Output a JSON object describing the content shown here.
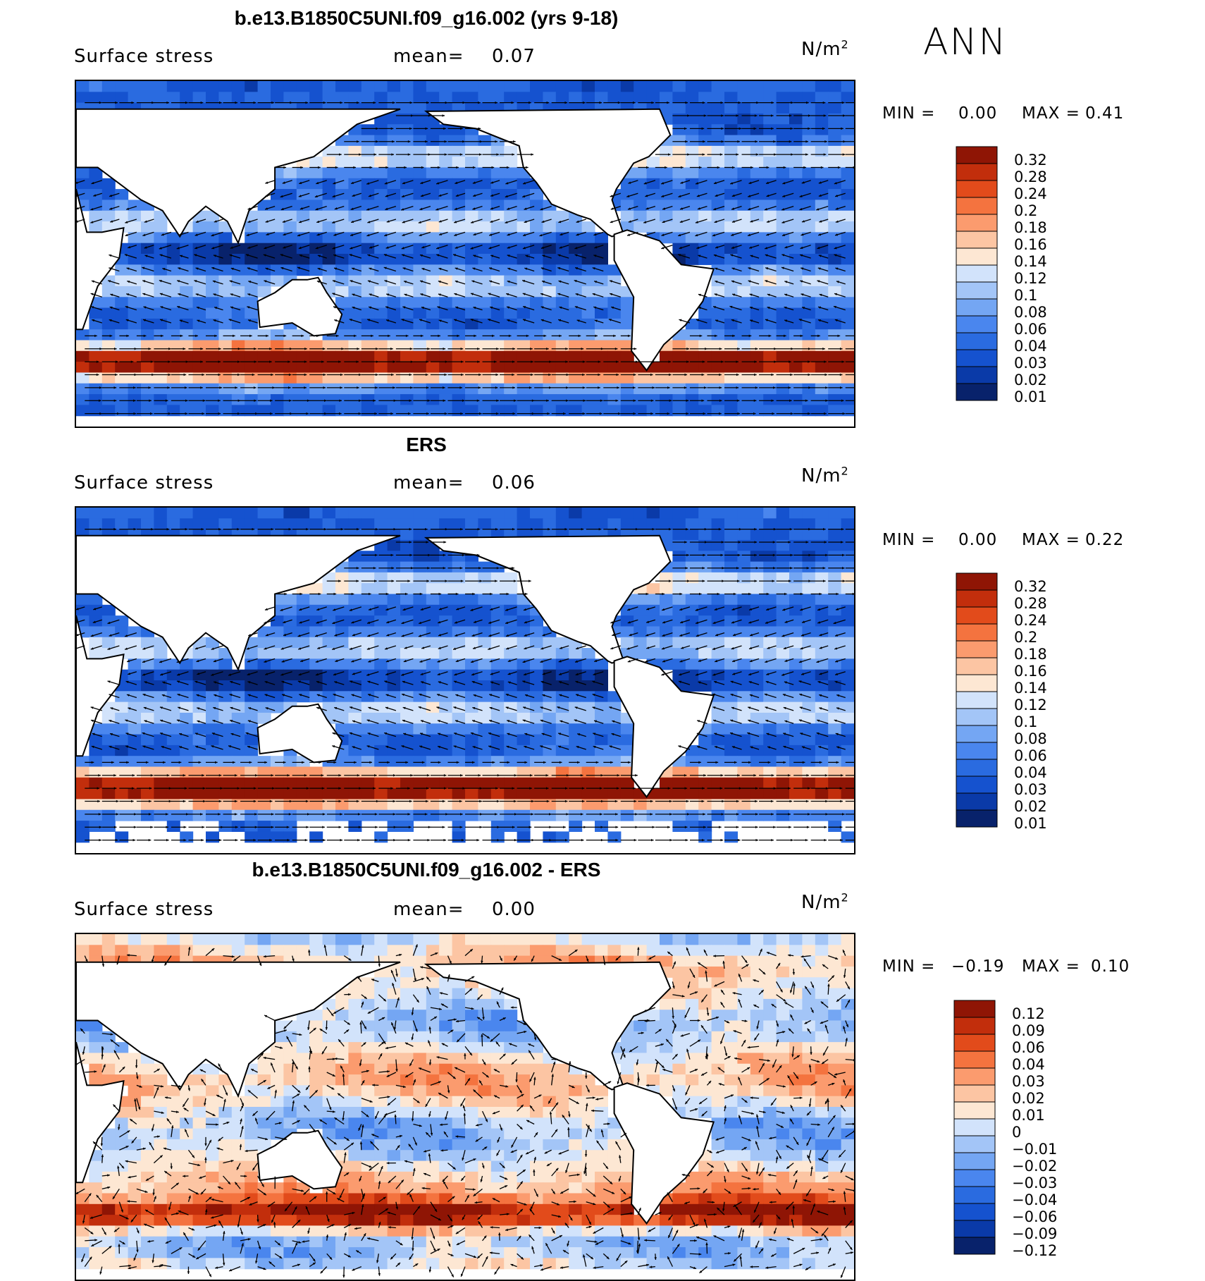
{
  "season": "ANN",
  "field_label": "Surface stress",
  "mean_label": "mean=",
  "units": "N/m",
  "units_exp": "2",
  "min_label": "MIN =",
  "max_label": "MAX =",
  "colors": {
    "seq": [
      "#08226b",
      "#0a3aa8",
      "#1552cf",
      "#2a6be0",
      "#4a86ee",
      "#74a6f3",
      "#a3c5f7",
      "#d2e3fb",
      "#fde7d3",
      "#fcc5a3",
      "#fb9b6e",
      "#f4733f",
      "#e24b1b",
      "#c22e0c",
      "#8f1505"
    ],
    "div": [
      "#08226b",
      "#0a3aa8",
      "#1552cf",
      "#2a6be0",
      "#4a86ee",
      "#74a6f3",
      "#a3c5f7",
      "#d2e3fb",
      "#fde7d3",
      "#fcc5a3",
      "#fb9b6e",
      "#f4733f",
      "#e24b1b",
      "#c22e0c",
      "#8f1505"
    ]
  },
  "chart_data": [
    {
      "type": "heatmap",
      "title": "b.e13.B1850C5UNI.f09_g16.002 (yrs 9-18)",
      "mean": "0.07",
      "min": "0.00",
      "max": "0.41",
      "colorbar_labels": [
        "0.32",
        "0.28",
        "0.24",
        "0.2",
        "0.18",
        "0.16",
        "0.14",
        "0.12",
        "0.1",
        "0.08",
        "0.06",
        "0.04",
        "0.03",
        "0.02",
        "0.01"
      ],
      "lon_range": [
        30,
        390
      ],
      "lat_range": [
        -80,
        80
      ]
    },
    {
      "type": "heatmap",
      "title": "ERS",
      "mean": "0.06",
      "min": "0.00",
      "max": "0.22",
      "colorbar_labels": [
        "0.32",
        "0.28",
        "0.24",
        "0.2",
        "0.18",
        "0.16",
        "0.14",
        "0.12",
        "0.1",
        "0.08",
        "0.06",
        "0.04",
        "0.03",
        "0.02",
        "0.01"
      ],
      "lon_range": [
        30,
        390
      ],
      "lat_range": [
        -80,
        80
      ]
    },
    {
      "type": "heatmap",
      "title": "b.e13.B1850C5UNI.f09_g16.002 - ERS",
      "mean": "0.00",
      "min": "−0.19",
      "max": "0.10",
      "colorbar_labels": [
        "0.12",
        "0.09",
        "0.06",
        "0.04",
        "0.03",
        "0.02",
        "0.01",
        "0",
        "−0.01",
        "−0.02",
        "−0.03",
        "−0.04",
        "−0.06",
        "−0.09",
        "−0.12"
      ],
      "lon_range": [
        30,
        390
      ],
      "lat_range": [
        -80,
        80
      ]
    }
  ]
}
